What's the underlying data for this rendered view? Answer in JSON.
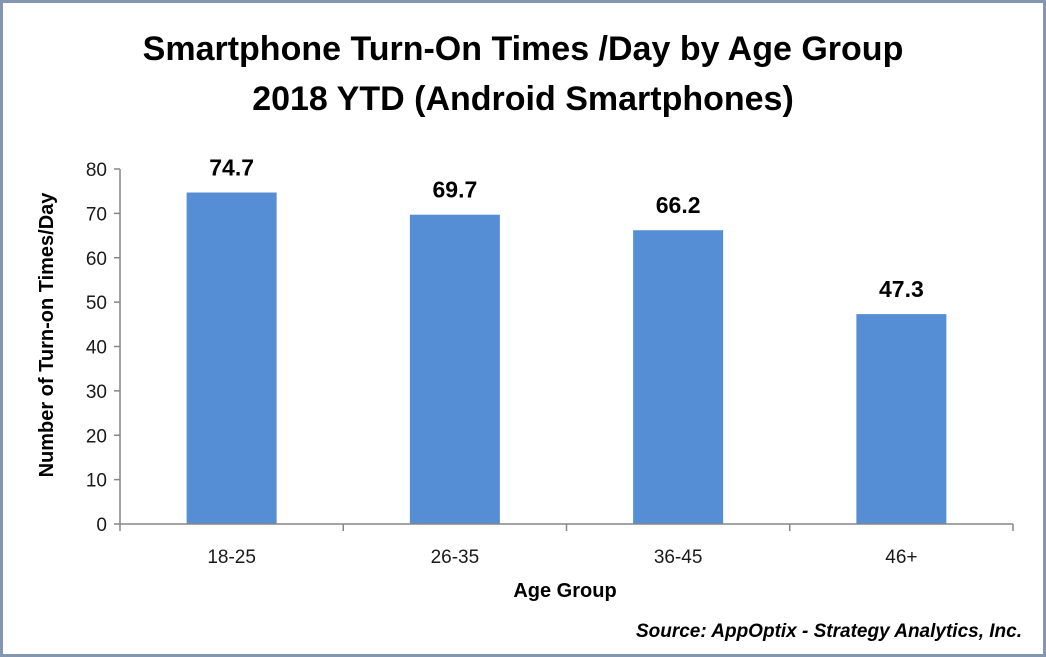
{
  "chart_data": {
    "type": "bar",
    "title": [
      "Smartphone Turn-On Times /Day by Age Group",
      "2018  YTD (Android Smartphones)"
    ],
    "categories": [
      "18-25",
      "26-35",
      "36-45",
      "46+"
    ],
    "values": [
      74.7,
      69.7,
      66.2,
      47.3
    ],
    "value_labels": [
      "74.7",
      "69.7",
      "66.2",
      "47.3"
    ],
    "xlabel": "Age Group",
    "ylabel": "Number of Turn-on Times/Day",
    "ylim": [
      0,
      80
    ],
    "yticks": [
      "0",
      "10",
      "20",
      "30",
      "40",
      "50",
      "60",
      "70",
      "80"
    ],
    "ytick_values": [
      0,
      10,
      20,
      30,
      40,
      50,
      60,
      70,
      80
    ],
    "grid": false,
    "legend": "none",
    "bar_color": "#558ed5",
    "source": "Source: AppOptix - Strategy Analytics, Inc."
  },
  "frame_color": "#8496b0",
  "axis_color": "#868686"
}
